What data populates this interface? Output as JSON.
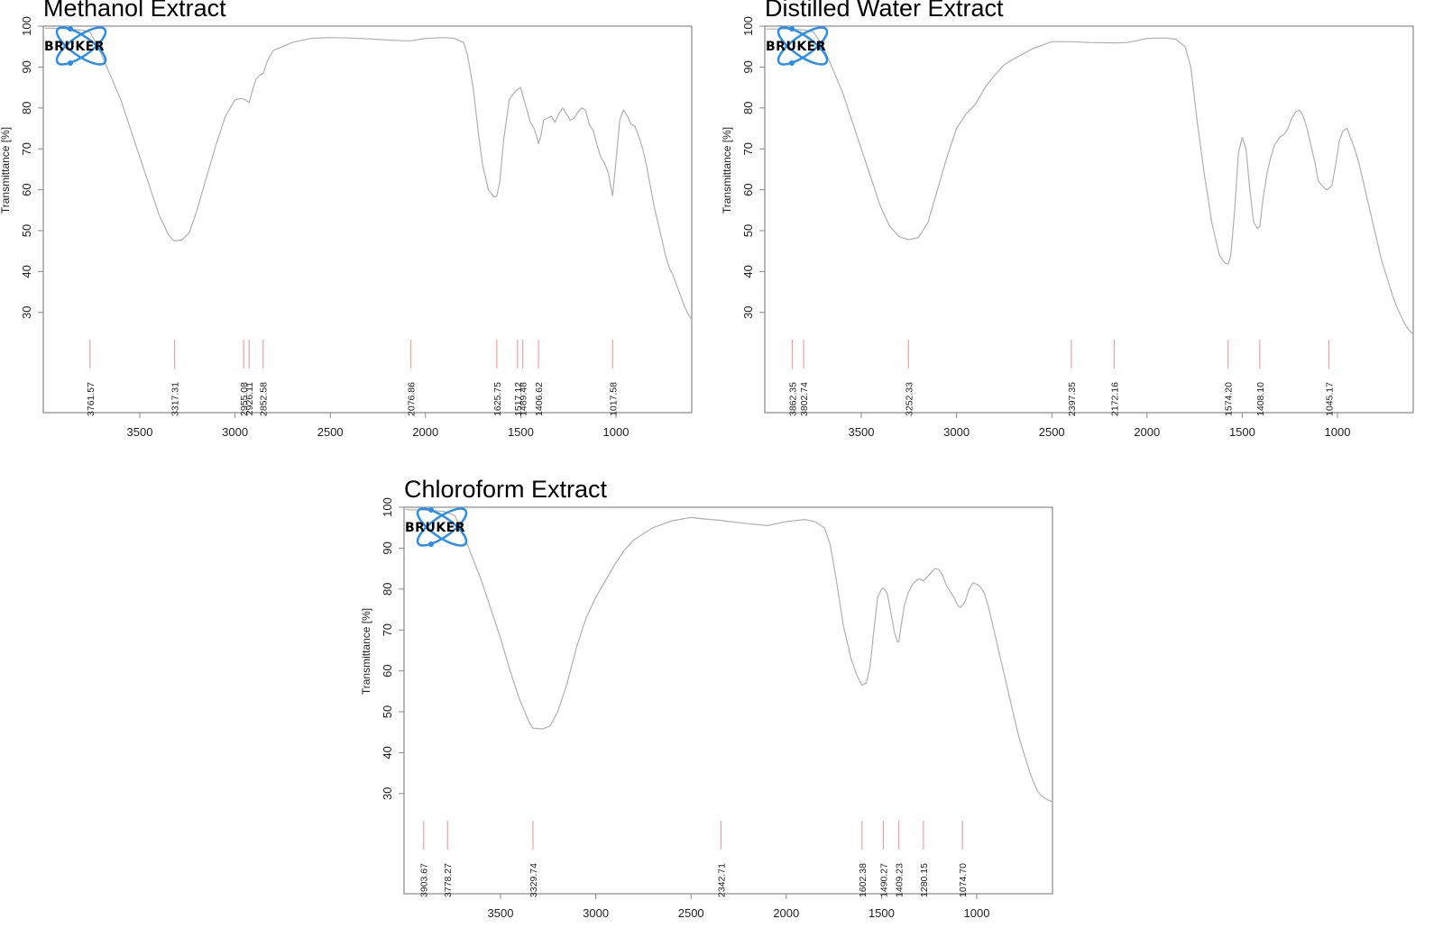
{
  "chart_data": [
    {
      "type": "line",
      "title": "Methanol Extract",
      "xlabel": "",
      "ylabel": "Transmittance [%]",
      "xlim": [
        4007,
        600
      ],
      "ylim": [
        30,
        100
      ],
      "x_ticks": [
        3500,
        3000,
        2500,
        2000,
        1500,
        1000
      ],
      "y_ticks": [
        100,
        90,
        80,
        70,
        60,
        50,
        40,
        30
      ],
      "logo": "BRUKER",
      "grid": false,
      "peak_labels": [
        "3761.57",
        "3317.31",
        "2955.08",
        "2926.11",
        "2852.58",
        "2076.86",
        "1625.75",
        "1517.12",
        "1489.48",
        "1406.62",
        "1017.58"
      ],
      "peaks": [
        3761.57,
        3317.31,
        2955.08,
        2926.11,
        2852.58,
        2076.86,
        1625.75,
        1517.12,
        1489.48,
        1406.62,
        1017.58
      ],
      "series": [
        {
          "name": "Methanol Extract",
          "x": [
            4000,
            3900,
            3800,
            3760,
            3700,
            3600,
            3500,
            3450,
            3400,
            3350,
            3320,
            3280,
            3240,
            3200,
            3150,
            3100,
            3050,
            3000,
            2970,
            2955,
            2940,
            2926,
            2910,
            2890,
            2870,
            2852,
            2830,
            2800,
            2700,
            2600,
            2500,
            2400,
            2300,
            2200,
            2100,
            2077,
            2000,
            1900,
            1850,
            1800,
            1780,
            1750,
            1720,
            1700,
            1670,
            1640,
            1626,
            1610,
            1590,
            1560,
            1530,
            1517,
            1500,
            1489,
            1470,
            1450,
            1430,
            1410,
            1407,
            1395,
            1380,
            1360,
            1340,
            1320,
            1300,
            1280,
            1260,
            1240,
            1220,
            1200,
            1180,
            1160,
            1140,
            1120,
            1100,
            1080,
            1060,
            1040,
            1018,
            1000,
            980,
            960,
            940,
            920,
            900,
            880,
            860,
            840,
            820,
            800,
            780,
            760,
            740,
            720,
            700,
            680,
            660,
            640,
            620,
            600
          ],
          "y": [
            99.5,
            99.4,
            99.0,
            98.5,
            93,
            82,
            68,
            61,
            54,
            49,
            47.5,
            47.7,
            49.5,
            55,
            63,
            71,
            78,
            82,
            82.3,
            82.2,
            81.8,
            81.3,
            84,
            87,
            88,
            88.5,
            91.5,
            94,
            96,
            97,
            97.2,
            97.1,
            96.9,
            96.6,
            96.4,
            96.4,
            97,
            97.2,
            97,
            96,
            93,
            85,
            73,
            66,
            60,
            58.2,
            58.5,
            62,
            72,
            82,
            84,
            84.5,
            85,
            83,
            80,
            76.5,
            75,
            72,
            71.2,
            73,
            77,
            77.5,
            78,
            76.5,
            78.5,
            80,
            78.5,
            77,
            77.5,
            79,
            80,
            79.5,
            76,
            74.5,
            71,
            68,
            66.5,
            64,
            58.5,
            67,
            77,
            79.5,
            78,
            76,
            75.5,
            73,
            70,
            66,
            61,
            56,
            52,
            48,
            44,
            41,
            39,
            36.5,
            34,
            31.5,
            29.5,
            28
          ]
        }
      ]
    },
    {
      "type": "line",
      "title": "Distilled Water Extract",
      "xlabel": "",
      "ylabel": "Transmittance [%]",
      "xlim": [
        4007,
        600
      ],
      "ylim": [
        30,
        100
      ],
      "x_ticks": [
        3500,
        3000,
        2500,
        2000,
        1500,
        1000
      ],
      "y_ticks": [
        100,
        90,
        80,
        70,
        60,
        50,
        40,
        30
      ],
      "logo": "BRUKER",
      "grid": false,
      "peak_labels": [
        "3862.35",
        "3802.74",
        "3252.33",
        "2397.35",
        "2172.16",
        "1574.20",
        "1408.10",
        "1045.17"
      ],
      "peaks": [
        3862.35,
        3802.74,
        3252.33,
        2397.35,
        2172.16,
        1574.2,
        1408.1,
        1045.17
      ],
      "series": [
        {
          "name": "Distilled Water Extract",
          "x": [
            4000,
            3900,
            3800,
            3750,
            3700,
            3600,
            3500,
            3450,
            3400,
            3350,
            3300,
            3252,
            3200,
            3150,
            3100,
            3050,
            3000,
            2950,
            2900,
            2850,
            2800,
            2750,
            2700,
            2600,
            2500,
            2397,
            2300,
            2172,
            2100,
            2000,
            1900,
            1850,
            1800,
            1770,
            1740,
            1700,
            1660,
            1620,
            1590,
            1574,
            1560,
            1540,
            1520,
            1500,
            1480,
            1460,
            1440,
            1420,
            1408,
            1390,
            1370,
            1350,
            1330,
            1300,
            1280,
            1260,
            1240,
            1220,
            1200,
            1180,
            1160,
            1140,
            1120,
            1100,
            1080,
            1060,
            1045,
            1030,
            1010,
            990,
            970,
            950,
            930,
            910,
            890,
            870,
            850,
            830,
            810,
            790,
            770,
            750,
            730,
            710,
            690,
            670,
            650,
            630,
            610,
            600
          ],
          "y": [
            99.3,
            99.3,
            99.1,
            98.5,
            95,
            84,
            70,
            63,
            56,
            51,
            48.5,
            47.8,
            48.3,
            52,
            60,
            68,
            75,
            78.5,
            81,
            85,
            88,
            90.5,
            92,
            94.5,
            96.2,
            96.2,
            96,
            95.9,
            96,
            97,
            97.1,
            96.8,
            95,
            90,
            78,
            64,
            52,
            44,
            42,
            41.8,
            44,
            55,
            69,
            72.8,
            70,
            60,
            52,
            50.5,
            51,
            58,
            64,
            68,
            71,
            73,
            73.5,
            75,
            77.5,
            79,
            79.5,
            78,
            75,
            71,
            67,
            62,
            61,
            60,
            60.3,
            61,
            66,
            72,
            74.5,
            75,
            72.5,
            70,
            67,
            63,
            59,
            55,
            51,
            47,
            43,
            40,
            37,
            34,
            31.5,
            29.5,
            27.5,
            26,
            25,
            24.5
          ]
        }
      ]
    },
    {
      "type": "line",
      "title": "Chloroform Extract",
      "xlabel": "",
      "ylabel": "Transmittance [%]",
      "xlim": [
        4007,
        600
      ],
      "ylim": [
        30,
        100
      ],
      "x_ticks": [
        3500,
        3000,
        2500,
        2000,
        1500,
        1000
      ],
      "y_ticks": [
        100,
        90,
        80,
        70,
        60,
        50,
        40,
        30
      ],
      "logo": "BRUKER",
      "grid": false,
      "peak_labels": [
        "3903.67",
        "3778.27",
        "3329.74",
        "2342.71",
        "1602.38",
        "1490.27",
        "1409.23",
        "1280.15",
        "1074.70"
      ],
      "peaks": [
        3903.67,
        3778.27,
        3329.74,
        2342.71,
        1602.38,
        1490.27,
        1409.23,
        1280.15,
        1074.7
      ],
      "series": [
        {
          "name": "Chloroform Extract",
          "x": [
            4000,
            3900,
            3800,
            3740,
            3700,
            3600,
            3500,
            3450,
            3400,
            3350,
            3330,
            3280,
            3240,
            3200,
            3150,
            3100,
            3050,
            3000,
            2950,
            2900,
            2850,
            2800,
            2700,
            2600,
            2500,
            2400,
            2343,
            2300,
            2200,
            2100,
            2000,
            1900,
            1850,
            1800,
            1770,
            1740,
            1700,
            1660,
            1630,
            1610,
            1602,
            1580,
            1560,
            1540,
            1520,
            1500,
            1490,
            1470,
            1450,
            1430,
            1415,
            1409,
            1400,
            1380,
            1360,
            1340,
            1320,
            1300,
            1280,
            1260,
            1240,
            1220,
            1200,
            1180,
            1160,
            1140,
            1120,
            1100,
            1085,
            1075,
            1060,
            1040,
            1020,
            1000,
            980,
            960,
            940,
            920,
            900,
            880,
            860,
            840,
            820,
            800,
            780,
            760,
            740,
            720,
            700,
            680,
            660,
            640,
            620,
            600
          ],
          "y": [
            99.4,
            99.3,
            99.0,
            98,
            94,
            82,
            68,
            60,
            53,
            47.5,
            46,
            45.8,
            46.5,
            50,
            57,
            66,
            73,
            78,
            82,
            86,
            89.5,
            92,
            95,
            96.7,
            97.5,
            97,
            96.8,
            96.5,
            96,
            95.5,
            96.5,
            97,
            96.5,
            95,
            91,
            83,
            71,
            63,
            59,
            57,
            56.5,
            57,
            61,
            70,
            78,
            80,
            80.2,
            79,
            74,
            69,
            67,
            67.2,
            70,
            76,
            79,
            81,
            82,
            82.5,
            82,
            83,
            84,
            85,
            84.8,
            83.5,
            81,
            79.5,
            78,
            76,
            75.5,
            76,
            77,
            80,
            81.5,
            81.2,
            80.5,
            79,
            76,
            72,
            68,
            64,
            60,
            56,
            52,
            48,
            44,
            41,
            38,
            35,
            32.5,
            30.5,
            29.5,
            28.8,
            28.3,
            28
          ]
        }
      ]
    }
  ],
  "panels": [
    {
      "title": "Methanol Extract",
      "ylabel": "Transmittance [%]"
    },
    {
      "title": "Distilled Water Extract",
      "ylabel": "Transmittance [%]"
    },
    {
      "title": "Chloroform Extract",
      "ylabel": "Transmittance [%]"
    }
  ],
  "logo_text": "BRUKER",
  "colors": {
    "spectrum": "#b0b0b0",
    "peak_marker": "#f4a0a0",
    "axis": "#888888",
    "logo_blue": "#2a8de8",
    "text": "#222222"
  }
}
